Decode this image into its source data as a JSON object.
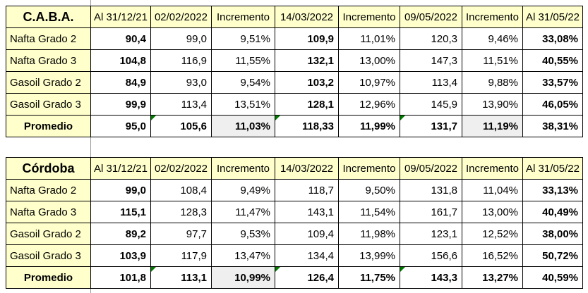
{
  "colors": {
    "header_bg": "#FFFFCC",
    "gray_cell_bg": "#EFEFEF",
    "border": "#000000",
    "comment_indicator": "#007B00",
    "gridline": "#9B9B9B"
  },
  "tables": [
    {
      "region": "C.A.B.A.",
      "headers": [
        "C.A.B.A.",
        "Al 31/12/21",
        "02/02/2022",
        "Incremento",
        "14/03/2022",
        "Incremento",
        "09/05/2022",
        "Incremento",
        "Al 31/05/22"
      ],
      "rows": [
        {
          "label": "Nafta Grado 2",
          "cells": [
            {
              "text": "90,4",
              "bold": true
            },
            {
              "text": "99,0"
            },
            {
              "text": "9,51%"
            },
            {
              "text": "109,9",
              "bold": true
            },
            {
              "text": "11,01%"
            },
            {
              "text": "120,3"
            },
            {
              "text": "9,46%"
            },
            {
              "text": "33,08%",
              "bold": true
            }
          ]
        },
        {
          "label": "Nafta Grado 3",
          "cells": [
            {
              "text": "104,8",
              "bold": true
            },
            {
              "text": "116,9"
            },
            {
              "text": "11,55%"
            },
            {
              "text": "132,1",
              "bold": true
            },
            {
              "text": "13,00%"
            },
            {
              "text": "147,3"
            },
            {
              "text": "11,51%"
            },
            {
              "text": "40,55%",
              "bold": true
            }
          ]
        },
        {
          "label": "Gasoil Grado 2",
          "cells": [
            {
              "text": "84,9",
              "bold": true
            },
            {
              "text": "93,0"
            },
            {
              "text": "9,54%"
            },
            {
              "text": "103,2",
              "bold": true
            },
            {
              "text": "10,97%"
            },
            {
              "text": "113,4"
            },
            {
              "text": "9,88%"
            },
            {
              "text": "33,57%",
              "bold": true
            }
          ]
        },
        {
          "label": "Gasoil Grado 3",
          "cells": [
            {
              "text": "99,9",
              "bold": true
            },
            {
              "text": "113,4"
            },
            {
              "text": "13,51%"
            },
            {
              "text": "128,1",
              "bold": true
            },
            {
              "text": "12,96%"
            },
            {
              "text": "145,9"
            },
            {
              "text": "13,90%"
            },
            {
              "text": "46,05%",
              "bold": true
            }
          ]
        },
        {
          "label": "Promedio",
          "is_promedio": true,
          "cells": [
            {
              "text": "95,0",
              "bold": true
            },
            {
              "text": "105,6",
              "bold": true,
              "marker": true
            },
            {
              "text": "11,03%",
              "bold": true,
              "gray": true
            },
            {
              "text": "118,33",
              "bold": true,
              "marker": true
            },
            {
              "text": "11,99%",
              "bold": true
            },
            {
              "text": "131,7",
              "bold": true,
              "marker": true
            },
            {
              "text": "11,19%",
              "bold": true,
              "gray": true
            },
            {
              "text": "38,31%",
              "bold": true
            }
          ]
        }
      ]
    },
    {
      "region": "Córdoba",
      "headers": [
        "Córdoba",
        "Al 31/12/21",
        "02/02/2022",
        "Incremento",
        "14/03/2022",
        "Incremento",
        "09/05/2022",
        "Incremento",
        "Al 31/05/22"
      ],
      "rows": [
        {
          "label": "Nafta Grado 2",
          "cells": [
            {
              "text": "99,0",
              "bold": true
            },
            {
              "text": "108,4"
            },
            {
              "text": "9,49%"
            },
            {
              "text": "118,7"
            },
            {
              "text": "9,50%"
            },
            {
              "text": "131,8"
            },
            {
              "text": "11,04%"
            },
            {
              "text": "33,13%",
              "bold": true
            }
          ]
        },
        {
          "label": "Nafta Grado 3",
          "cells": [
            {
              "text": "115,1",
              "bold": true
            },
            {
              "text": "128,3"
            },
            {
              "text": "11,47%"
            },
            {
              "text": "143,1"
            },
            {
              "text": "11,54%"
            },
            {
              "text": "161,7"
            },
            {
              "text": "13,00%"
            },
            {
              "text": "40,49%",
              "bold": true
            }
          ]
        },
        {
          "label": "Gasoil Grado 2",
          "cells": [
            {
              "text": "89,2",
              "bold": true
            },
            {
              "text": "97,7"
            },
            {
              "text": "9,53%"
            },
            {
              "text": "109,4"
            },
            {
              "text": "11,98%"
            },
            {
              "text": "123,1"
            },
            {
              "text": "12,52%"
            },
            {
              "text": "38,00%",
              "bold": true
            }
          ]
        },
        {
          "label": "Gasoil Grado 3",
          "cells": [
            {
              "text": "103,9",
              "bold": true
            },
            {
              "text": "117,9"
            },
            {
              "text": "13,47%"
            },
            {
              "text": "134,4"
            },
            {
              "text": "13,99%"
            },
            {
              "text": "156,6"
            },
            {
              "text": "16,52%"
            },
            {
              "text": "50,72%",
              "bold": true
            }
          ]
        },
        {
          "label": "Promedio",
          "is_promedio": true,
          "cells": [
            {
              "text": "101,8",
              "bold": true
            },
            {
              "text": "113,1",
              "bold": true,
              "marker": true
            },
            {
              "text": "10,99%",
              "bold": true,
              "gray": true
            },
            {
              "text": "126,4",
              "bold": true,
              "marker": true
            },
            {
              "text": "11,75%",
              "bold": true
            },
            {
              "text": "143,3",
              "bold": true,
              "marker": true
            },
            {
              "text": "13,27%",
              "bold": true
            },
            {
              "text": "40,59%",
              "bold": true
            }
          ]
        }
      ]
    }
  ]
}
